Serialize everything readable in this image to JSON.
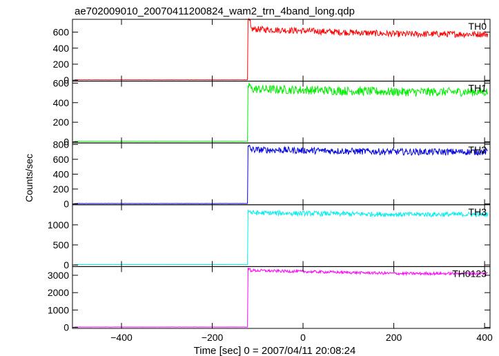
{
  "chart_data": {
    "type": "line",
    "title": "ae702009010_20070411200824_wam2_trn_4band_long.qdp",
    "xlabel": "Time [sec] 0 = 2007/04/11 20:08:24",
    "ylabel": "Counts/sec",
    "xlim": [
      -508,
      412
    ],
    "xticks": [
      -400,
      -200,
      0,
      200,
      400
    ],
    "panels": [
      {
        "name": "TH0",
        "color": "#ff0000",
        "ylim": [
          -12,
          760
        ],
        "yticks": [
          0,
          200,
          400,
          600
        ],
        "pre": 5,
        "peak": 730,
        "post_start": 640,
        "post_end": 575,
        "noise": 40
      },
      {
        "name": "TH1",
        "color": "#00ee00",
        "ylim": [
          -12,
          620
        ],
        "yticks": [
          0,
          200,
          400,
          600
        ],
        "pre": 5,
        "peak": 580,
        "post_start": 540,
        "post_end": 510,
        "noise": 45
      },
      {
        "name": "TH2",
        "color": "#0000dd",
        "ylim": [
          -12,
          820
        ],
        "yticks": [
          0,
          200,
          400,
          600,
          800
        ],
        "pre": 5,
        "peak": 760,
        "post_start": 730,
        "post_end": 700,
        "noise": 45
      },
      {
        "name": "TH3",
        "color": "#00eeee",
        "ylim": [
          -40,
          1500
        ],
        "yticks": [
          0,
          500,
          1000
        ],
        "pre": 10,
        "peak": 1350,
        "post_start": 1300,
        "post_end": 1260,
        "noise": 60
      },
      {
        "name": "TH0123",
        "color": "#ff00ff",
        "ylim": [
          -60,
          3500
        ],
        "yticks": [
          0,
          1000,
          2000,
          3000
        ],
        "pre": 20,
        "peak": 3350,
        "post_start": 3280,
        "post_end": 3100,
        "noise": 80
      }
    ],
    "onset_time": -122,
    "grid": false,
    "legend": "none"
  }
}
